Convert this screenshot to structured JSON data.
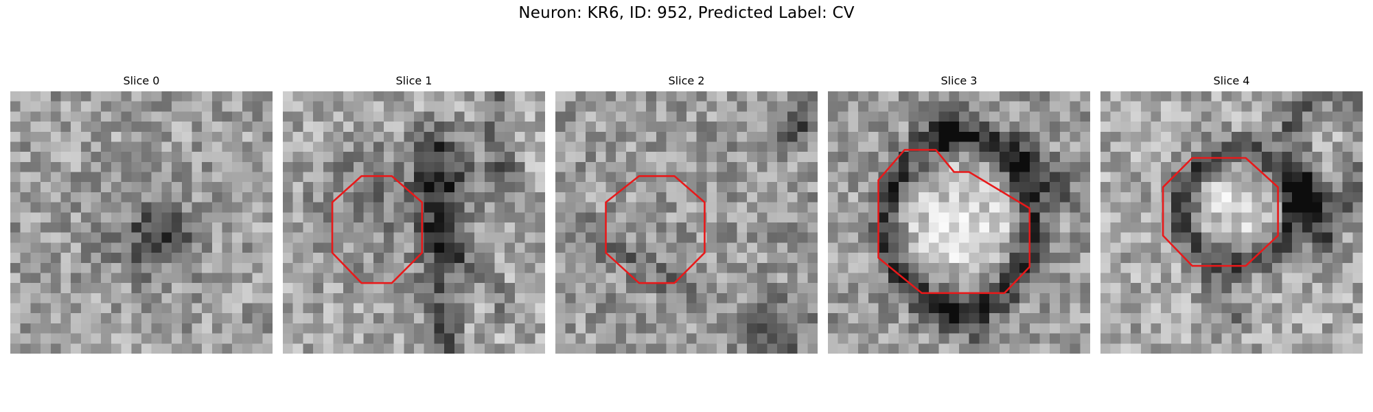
{
  "figure": {
    "title": "Neuron: KR6, ID: 952, Predicted Label: CV"
  },
  "panels": [
    {
      "title": "Slice 0",
      "has_outline": false
    },
    {
      "title": "Slice 1",
      "has_outline": true
    },
    {
      "title": "Slice 2",
      "has_outline": true
    },
    {
      "title": "Slice 3",
      "has_outline": true
    },
    {
      "title": "Slice 4",
      "has_outline": true
    }
  ],
  "colors": {
    "outline": "#e8191a",
    "background": "#ffffff"
  }
}
